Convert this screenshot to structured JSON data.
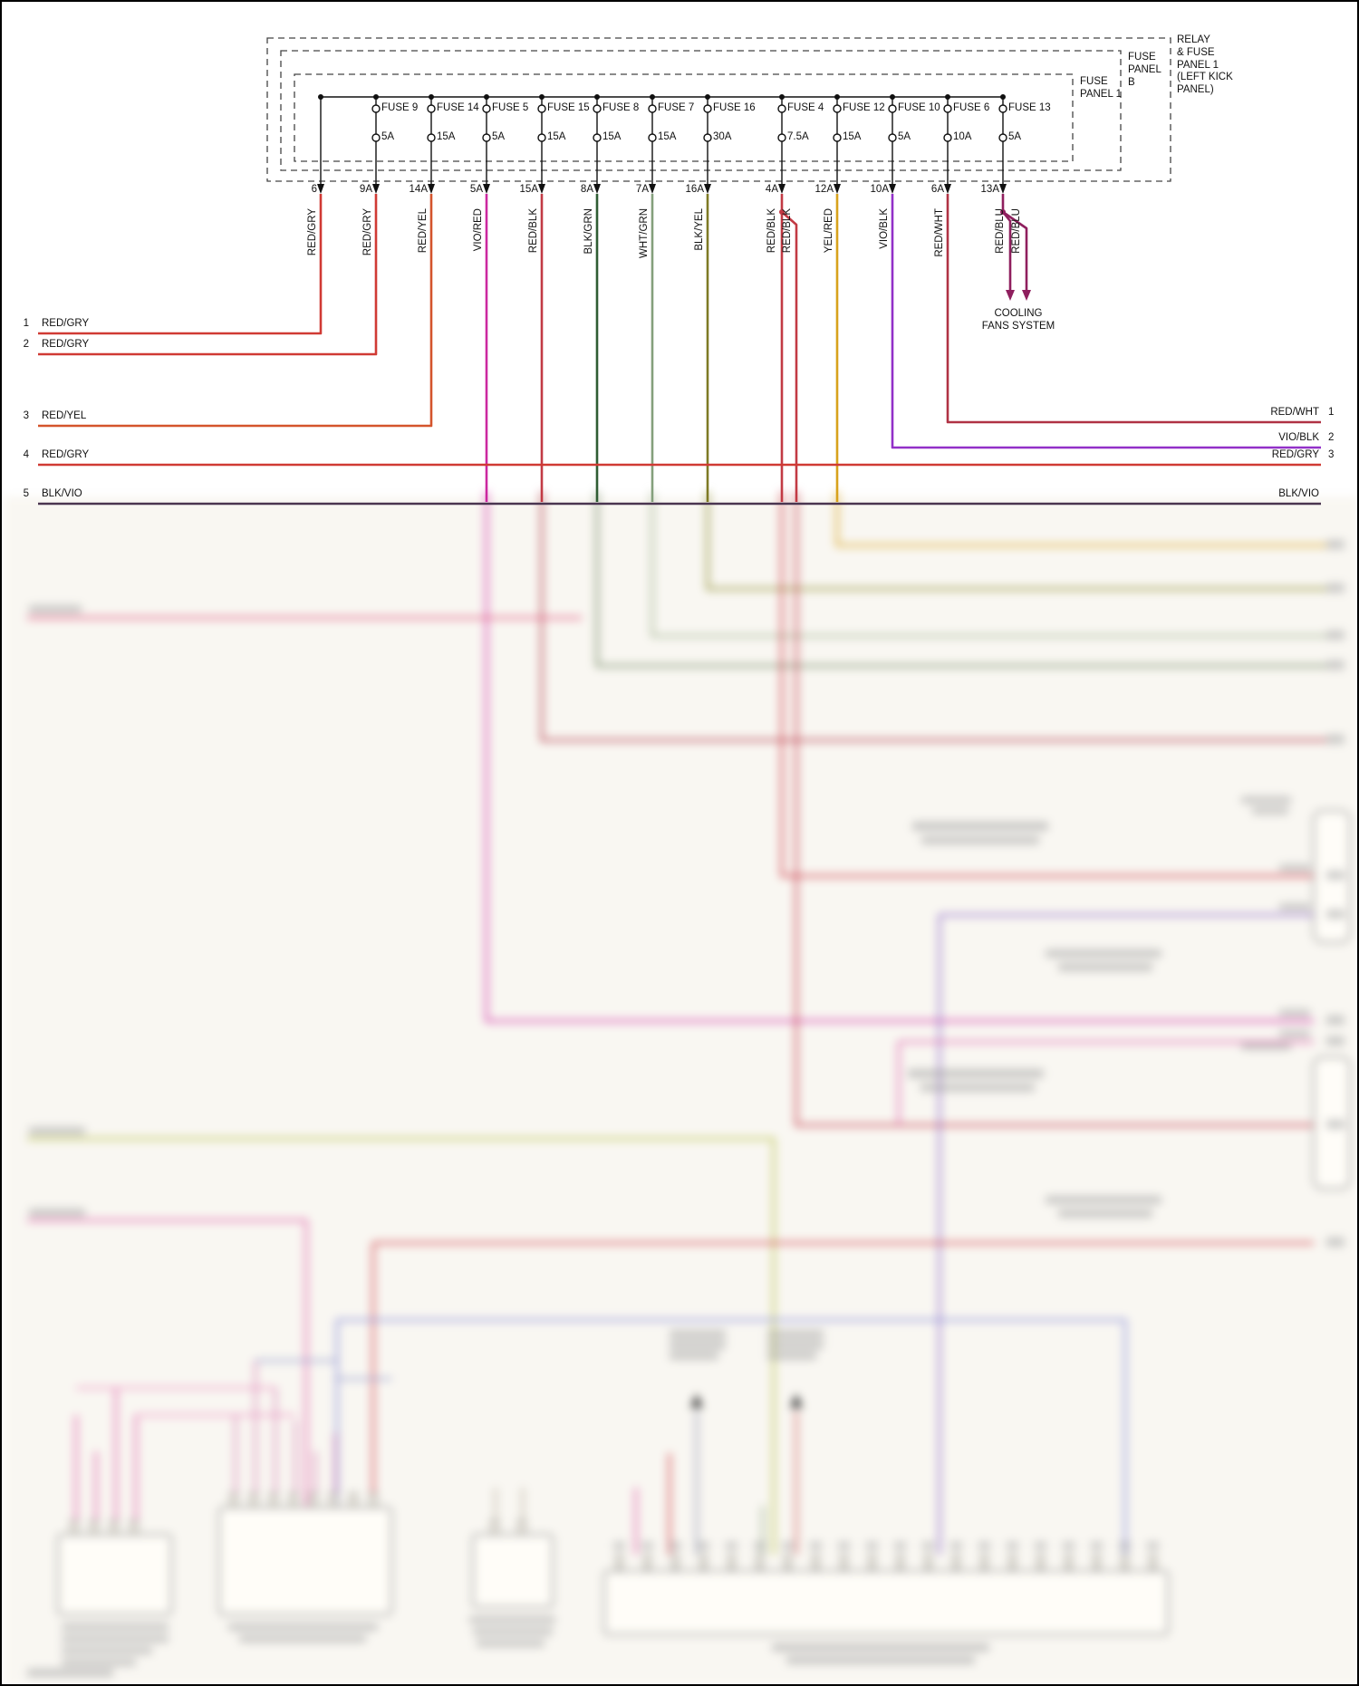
{
  "diagram": {
    "panel_labels": {
      "relay_fuse_panel": "RELAY\n& FUSE\nPANEL 1\n(LEFT KICK\nPANEL)",
      "fuse_panel_b": "FUSE\nPANEL\nB",
      "fuse_panel_1": "FUSE\nPANEL 1"
    },
    "cooling_fans": "COOLING\nFANS SYSTEM",
    "fuses": [
      {
        "name": "FUSE 9",
        "amps": "5A"
      },
      {
        "name": "FUSE 14",
        "amps": "15A"
      },
      {
        "name": "FUSE 5",
        "amps": "5A"
      },
      {
        "name": "FUSE 15",
        "amps": "15A"
      },
      {
        "name": "FUSE 8",
        "amps": "15A"
      },
      {
        "name": "FUSE 7",
        "amps": "15A"
      },
      {
        "name": "FUSE 16",
        "amps": "30A"
      },
      {
        "name": "FUSE 4",
        "amps": "7.5A"
      },
      {
        "name": "FUSE 12",
        "amps": "15A"
      },
      {
        "name": "FUSE 10",
        "amps": "5A"
      },
      {
        "name": "FUSE 6",
        "amps": "10A"
      },
      {
        "name": "FUSE 13",
        "amps": "5A"
      }
    ],
    "pins": [
      "6",
      "9A",
      "14A",
      "5A",
      "15A",
      "8A",
      "7A",
      "16A",
      "4A",
      "12A",
      "10A",
      "6A",
      "13A"
    ],
    "wire_labels": [
      "RED/GRY",
      "RED/GRY",
      "RED/YEL",
      "VIO/RED",
      "RED/BLK",
      "BLK/GRN",
      "WHT/GRN",
      "BLK/YEL",
      "RED/BLK",
      "RED/BLK",
      "YEL/RED",
      "VIO/BLK",
      "RED/WHT",
      "RED/BLU",
      "RED/BLU"
    ],
    "left_wires": [
      {
        "num": "1",
        "label": "RED/GRY"
      },
      {
        "num": "2",
        "label": "RED/GRY"
      },
      {
        "num": "3",
        "label": "RED/YEL"
      },
      {
        "num": "4",
        "label": "RED/GRY"
      },
      {
        "num": "5",
        "label": "BLK/VIO"
      }
    ],
    "right_wires": [
      {
        "num": "1",
        "label": "RED/WHT"
      },
      {
        "num": "2",
        "label": "VIO/BLK"
      },
      {
        "num": "3",
        "label": "RED/GRY"
      },
      {
        "num": "",
        "label": "BLK/VIO"
      }
    ],
    "colors": {
      "red_gry": "#d03a34",
      "red_yel": "#d4542c",
      "vio_red": "#cb28a0",
      "red_blk": "#c23a44",
      "blk_grn": "#2f5d33",
      "wht_grn": "#84a07c",
      "blk_yel": "#7e7a25",
      "yel_red": "#d8a21c",
      "vio_blk": "#9230c8",
      "red_wht": "#b03244",
      "red_blu": "#8f1f5e",
      "blk_vio": "#4a3550"
    }
  }
}
